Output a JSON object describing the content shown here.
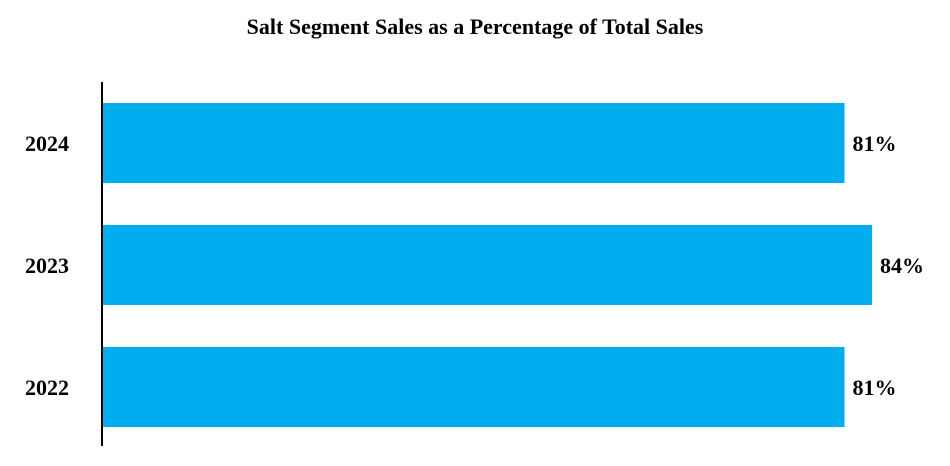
{
  "chart_data": {
    "type": "bar",
    "orientation": "horizontal",
    "title": "Salt Segment Sales as a Percentage of Total Sales",
    "categories": [
      "2024",
      "2023",
      "2022"
    ],
    "values": [
      81,
      84,
      81
    ],
    "value_labels": [
      "81%",
      "84%",
      "81%"
    ],
    "xlabel": "",
    "ylabel": "",
    "xlim": [
      0,
      84
    ],
    "grid": false,
    "legend": "none",
    "bar_color": "#00AEEF",
    "axis_color": "#000000"
  }
}
